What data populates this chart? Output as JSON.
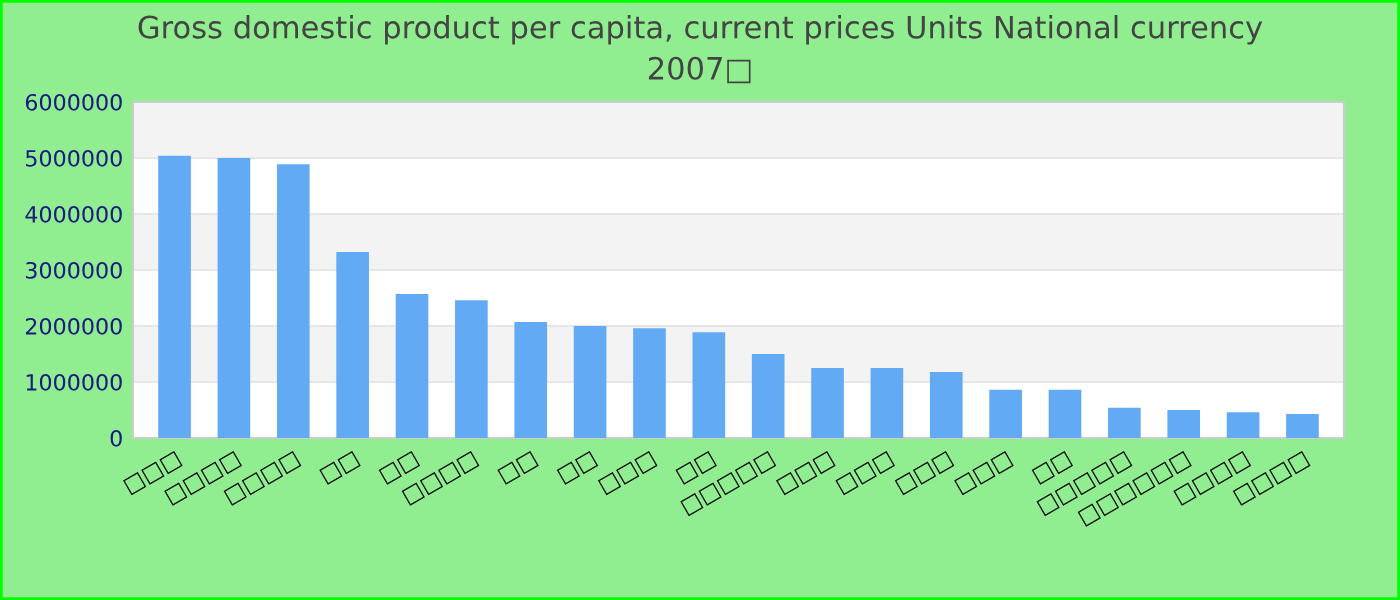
{
  "chart_data": {
    "type": "bar",
    "title": "Gross domestic product per capita, current prices Units National currency 2007□",
    "categories": [
      "□□□",
      "□□□□",
      "□□□□",
      "□□",
      "□□",
      "□□□□",
      "□□",
      "□□",
      "□□□",
      "□□",
      "□□□□□",
      "□□□",
      "□□□",
      "□□□",
      "□□□",
      "□□",
      "□□□□□",
      "□□□□□□",
      "□□□□",
      "□□□□"
    ],
    "values": [
      5040000.0,
      5000000.0,
      4890000.0,
      3320000.0,
      2570000.0,
      2460000.0,
      2070000.0,
      2000000.0,
      1960000.0,
      1890000.0,
      1500000.0,
      1250000.0,
      1250000.0,
      1180000.0,
      860000.0,
      860000.0,
      540000.0,
      500000.0,
      460000.0,
      430000.0
    ],
    "color": "#63aaf5",
    "ylim": [
      0,
      6000000
    ],
    "yticks": [
      0,
      1000000,
      2000000,
      3000000,
      4000000,
      5000000,
      6000000
    ],
    "grid": "y",
    "legend": false
  }
}
